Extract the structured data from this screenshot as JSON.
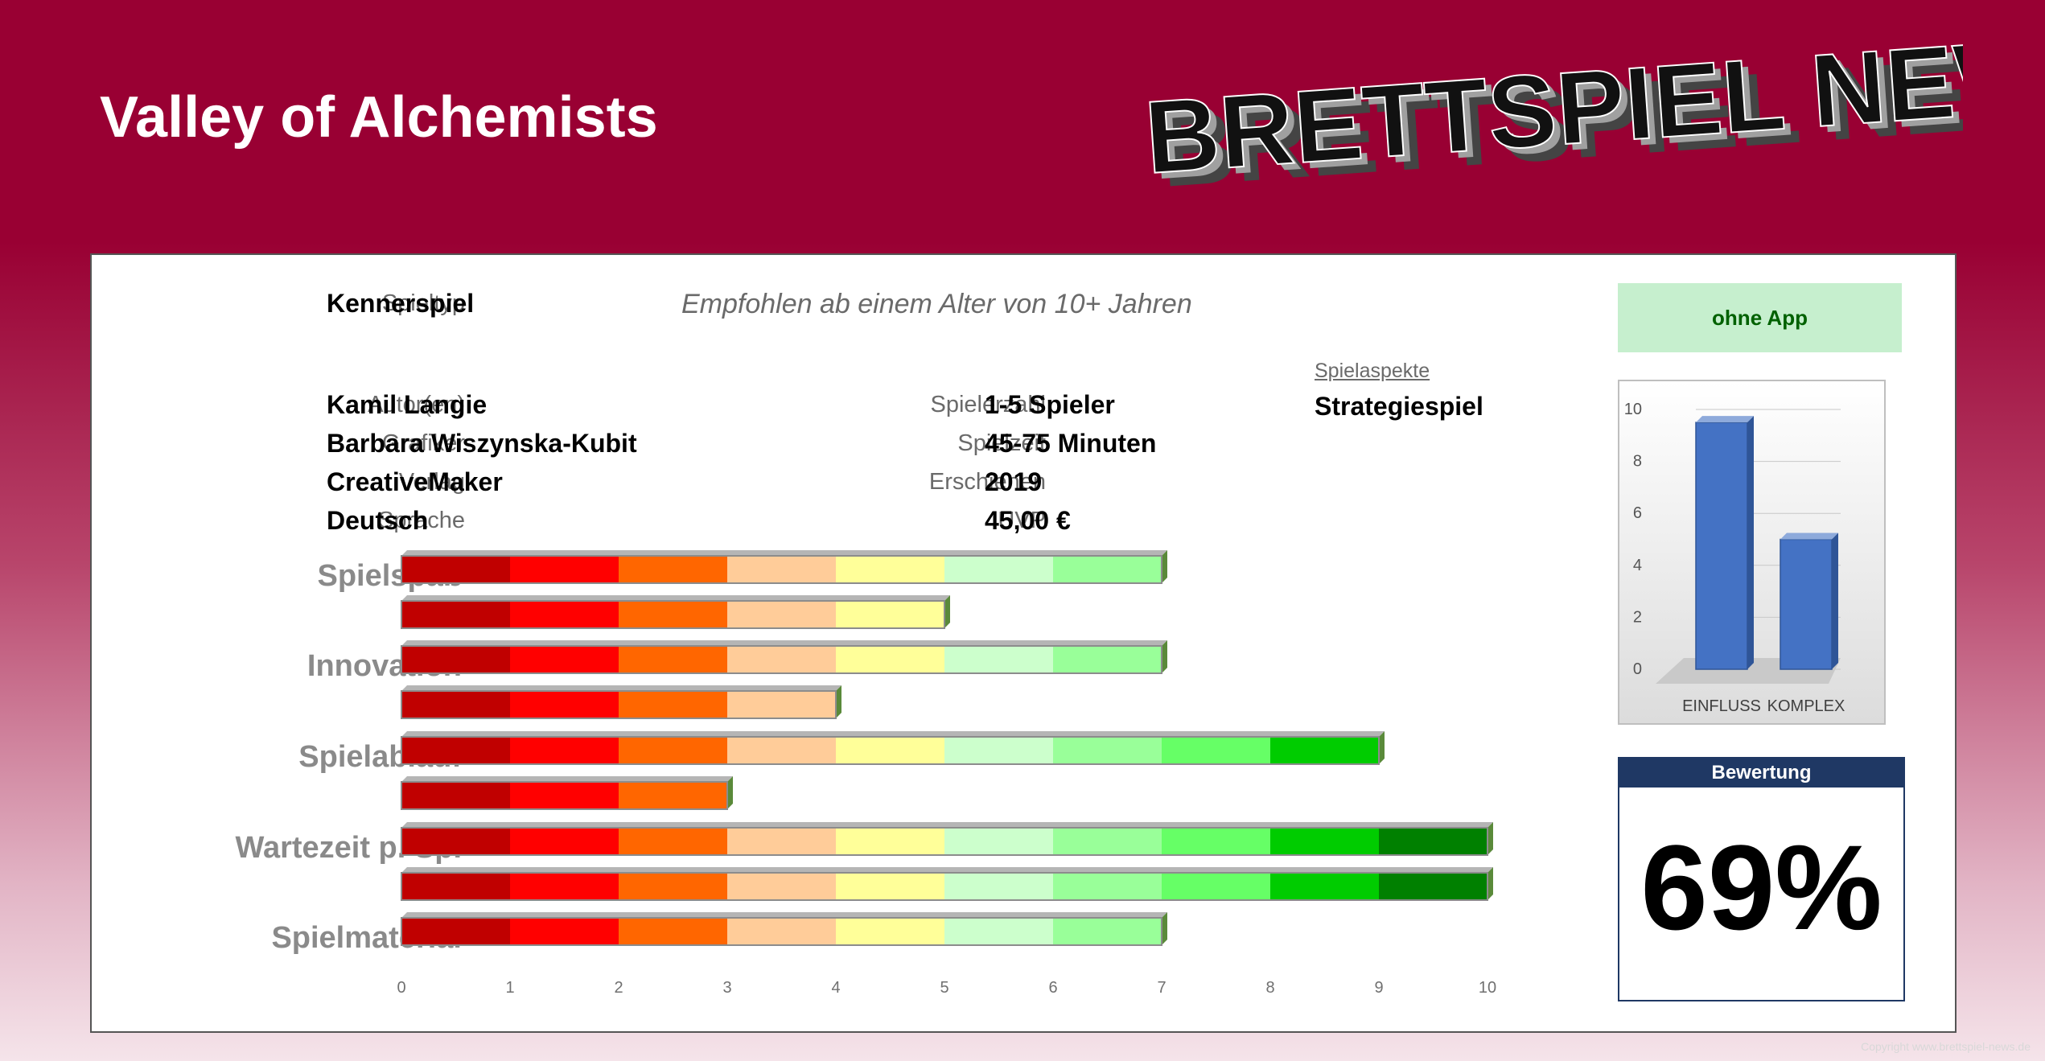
{
  "header": {
    "title": "Valley of Alchemists",
    "logo_text": "BRETTSPIEL NEWS"
  },
  "info_left": [
    {
      "label": "Spieltyp",
      "value": "Kennerspiel"
    },
    {
      "label": "Autor(en)",
      "value": "Kamil Langie"
    },
    {
      "label": "Grafiker",
      "value": "Barbara Wiszynska-Kubit"
    },
    {
      "label": "Verlag",
      "value": "CreativeMaker"
    },
    {
      "label": "Sprache",
      "value": "Deutsch"
    }
  ],
  "info_mid": [
    {
      "label": "Spielerzahl",
      "value": "1-5 Spieler"
    },
    {
      "label": "Spielzeit",
      "value": "45-75 Minuten"
    },
    {
      "label": "Erschienen",
      "value": "2019"
    },
    {
      "label": "UVP",
      "value": "45,00 €"
    }
  ],
  "age_text": "Empfohlen ab einem Alter von 10+ Jahren",
  "aspects": {
    "label": "Spielaspekte",
    "value": "Strategiespiel"
  },
  "app_badge": "ohne App",
  "rating": {
    "label": "Bewertung",
    "value": "69%"
  },
  "copyright": "Copyright www.brettspiel-news.de",
  "colors": {
    "brand": "#990033",
    "segments": [
      "#c00000",
      "#ff0000",
      "#ff6600",
      "#ffcc99",
      "#ffff99",
      "#ccffcc",
      "#99ff99",
      "#66ff66",
      "#00cc00",
      "#008000"
    ],
    "app_bg": "#c6efce",
    "app_text": "#006100",
    "rating_head": "#1f3864",
    "mini_bar": "#4472c4"
  },
  "chart_data": [
    {
      "type": "bar",
      "orientation": "horizontal",
      "categories": [
        "Spielspaß",
        "Innovation",
        "Spielablauf",
        "Wartezeit p. Sp.",
        "Spielmaterial"
      ],
      "series": [
        {
          "values": [
            7,
            7,
            9,
            10,
            7
          ]
        },
        {
          "values": [
            5,
            4,
            3,
            10,
            null
          ]
        }
      ],
      "xlim": [
        0,
        10
      ],
      "x_ticks": [
        "0",
        "1",
        "2",
        "3",
        "4",
        "5",
        "6",
        "7",
        "8",
        "9",
        "10"
      ]
    },
    {
      "type": "bar",
      "categories": [
        "EINFLUSS",
        "KOMPLEX"
      ],
      "values": [
        9.5,
        5
      ],
      "ylim": [
        0,
        10
      ],
      "y_ticks": [
        "0",
        "2",
        "4",
        "6",
        "8",
        "10"
      ],
      "grid": true
    }
  ]
}
